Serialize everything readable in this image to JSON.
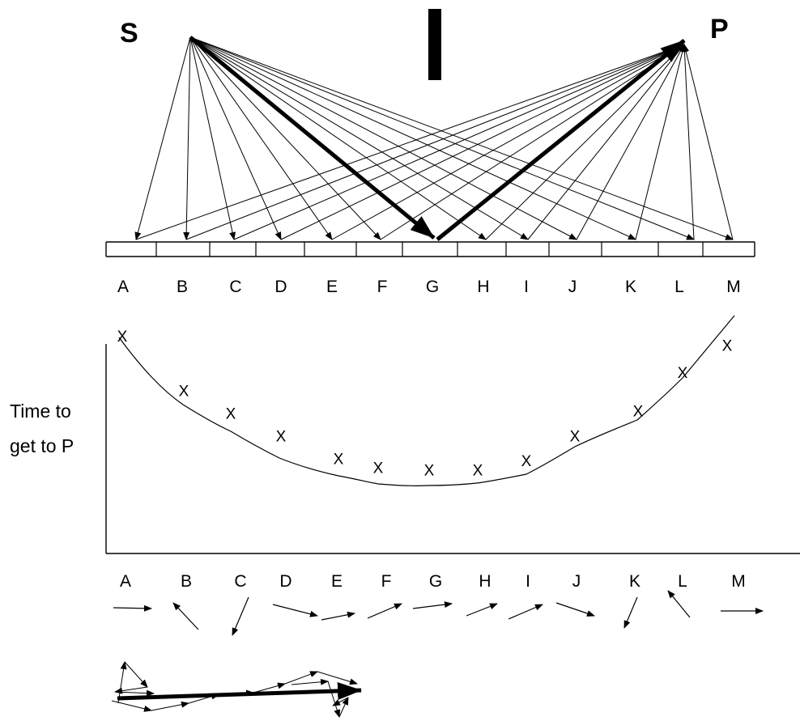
{
  "source_label": "S",
  "target_label": "P",
  "points": [
    "A",
    "B",
    "C",
    "D",
    "E",
    "F",
    "G",
    "H",
    "I",
    "J",
    "K",
    "L",
    "M"
  ],
  "minimum_point": "G",
  "y_axis_label_lines": [
    "Time to",
    "get to P"
  ],
  "point_marker": "X",
  "chart_data": {
    "type": "scatter",
    "categories": [
      "A",
      "B",
      "C",
      "D",
      "E",
      "F",
      "G",
      "H",
      "I",
      "J",
      "K",
      "L",
      "M"
    ],
    "ylabel": "Time to get to P",
    "relative_times": [
      0.96,
      0.72,
      0.62,
      0.52,
      0.42,
      0.38,
      0.37,
      0.37,
      0.41,
      0.52,
      0.63,
      0.8,
      0.92
    ],
    "curve": "smooth U-shaped fit with minimum at G",
    "grid": false
  },
  "colors": {
    "ink": "#000000",
    "background": "#ffffff"
  }
}
